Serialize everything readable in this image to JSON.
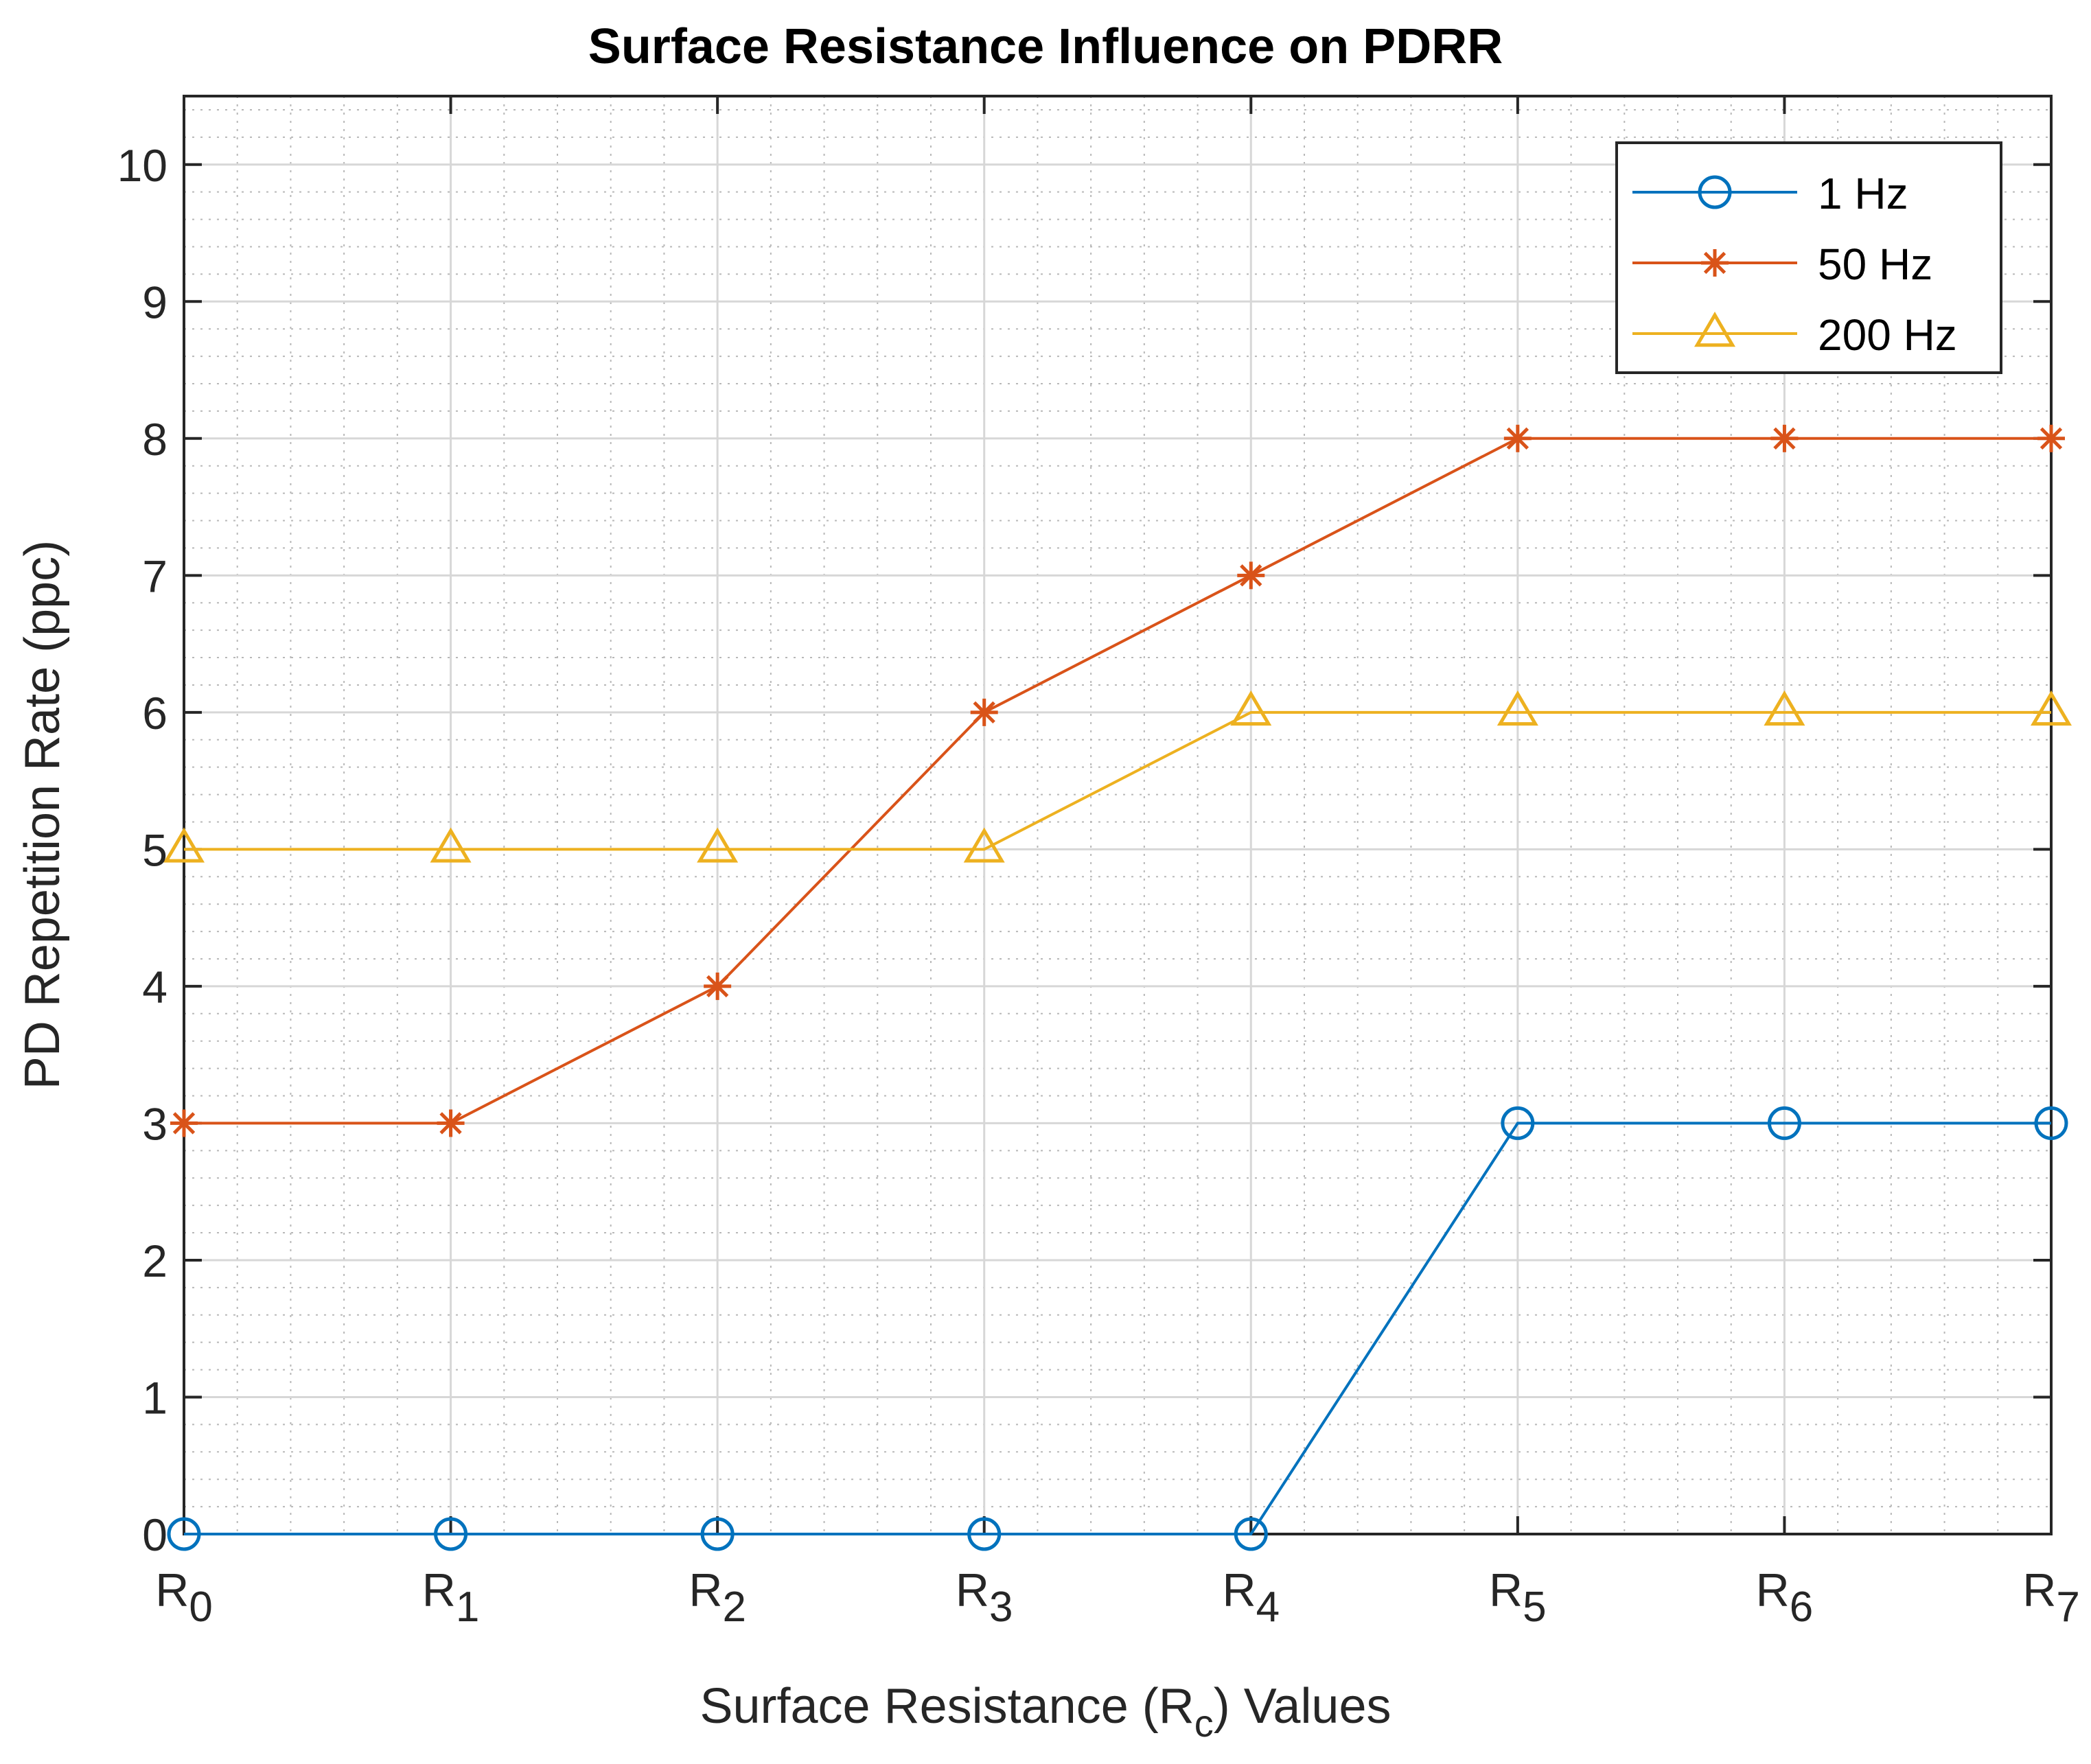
{
  "chart_data": {
    "type": "line",
    "title": "Surface Resistance Influence on PDRR",
    "xlabel": "Surface Resistance (R_c) Values",
    "xlabel_parts": {
      "pre": "Surface Resistance (R",
      "sub": "c",
      "post": ") Values"
    },
    "ylabel": "PD Repetition Rate (ppc)",
    "categories": [
      "R0",
      "R1",
      "R2",
      "R3",
      "R4",
      "R5",
      "R6",
      "R7"
    ],
    "category_labels": [
      {
        "base": "R",
        "sub": "0"
      },
      {
        "base": "R",
        "sub": "1"
      },
      {
        "base": "R",
        "sub": "2"
      },
      {
        "base": "R",
        "sub": "3"
      },
      {
        "base": "R",
        "sub": "4"
      },
      {
        "base": "R",
        "sub": "5"
      },
      {
        "base": "R",
        "sub": "6"
      },
      {
        "base": "R",
        "sub": "7"
      }
    ],
    "ylim": [
      0,
      10.5
    ],
    "yticks": [
      0,
      1,
      2,
      3,
      4,
      5,
      6,
      7,
      8,
      9,
      10
    ],
    "grid": true,
    "minor_grid": true,
    "legend_position": "top-right",
    "series": [
      {
        "name": "1 Hz",
        "marker": "circle",
        "color": "#0072BD",
        "values": [
          0,
          0,
          0,
          0,
          0,
          3,
          3,
          3
        ]
      },
      {
        "name": "50 Hz",
        "marker": "asterisk",
        "color": "#D95319",
        "values": [
          3,
          3,
          4,
          6,
          7,
          8,
          8,
          8
        ]
      },
      {
        "name": "200 Hz",
        "marker": "triangle",
        "color": "#EDB120",
        "values": [
          5,
          5,
          5,
          5,
          6,
          6,
          6,
          6
        ]
      }
    ]
  }
}
